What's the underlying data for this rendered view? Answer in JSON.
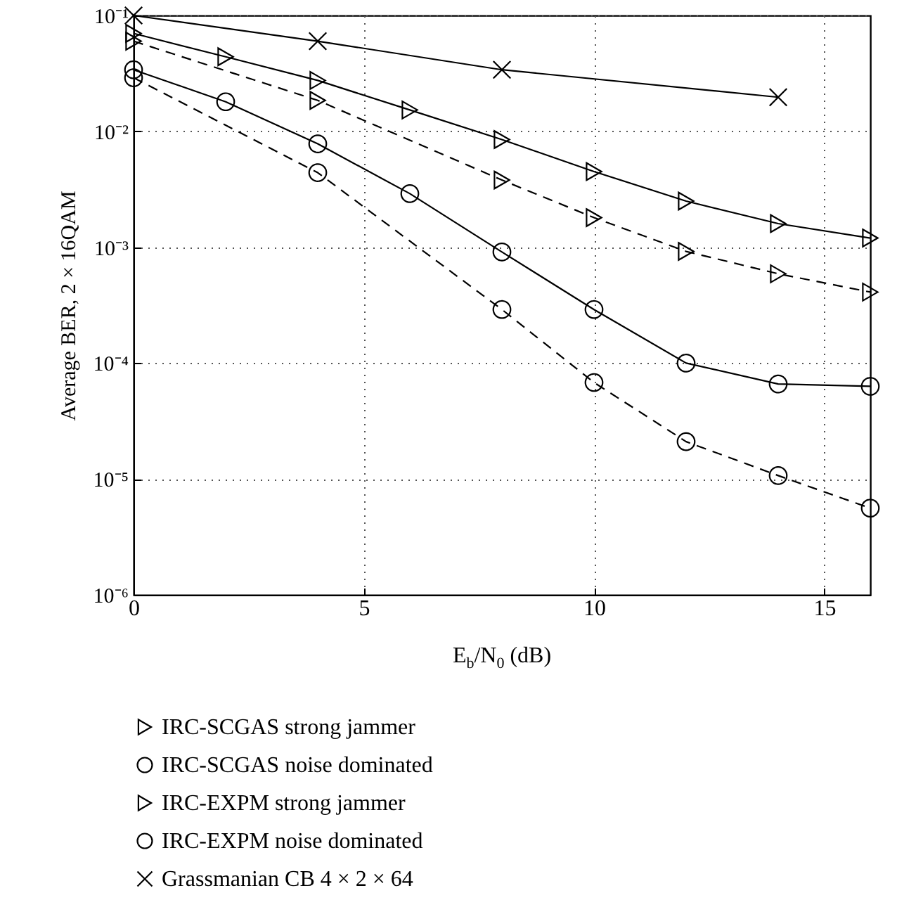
{
  "chart_data": {
    "type": "line",
    "xlabel": "E$_{b}$/N$_{0}$ (dB)",
    "ylabel": "Average BER, 2 × 16QAM",
    "log": "y",
    "xlim": [
      0,
      16
    ],
    "xticks": [
      0,
      5,
      10,
      15
    ],
    "ylim": [
      1e-06,
      0.1
    ],
    "yticks": [
      {
        "value": 1e-06,
        "label": "10⁻⁶"
      },
      {
        "value": 1e-05,
        "label": "10⁻⁵"
      },
      {
        "value": 0.0001,
        "label": "10⁻⁴"
      },
      {
        "value": 0.001,
        "label": "10⁻³"
      },
      {
        "value": 0.01,
        "label": "10⁻²"
      },
      {
        "value": 0.1,
        "label": "10⁻¹"
      }
    ],
    "grid": true,
    "legend": "bottom",
    "x": [
      0,
      2,
      4,
      6,
      8,
      10,
      12,
      14,
      16
    ],
    "series": [
      {
        "name": "IRC-SCGAS strong jammer",
        "color": "#000000",
        "marker": "triangle",
        "line_style": "solid",
        "values": [
          0.07,
          0.044,
          0.0275,
          0.0153,
          0.0085,
          0.0045,
          0.0025,
          0.0016,
          0.0012
        ]
      },
      {
        "name": "IRC-SCGAS noise dominated",
        "color": "#000000",
        "marker": "circle",
        "line_style": "solid",
        "values": [
          0.034,
          0.018,
          0.0078,
          0.0029,
          0.00091,
          0.00029,
          0.0001,
          6.6e-05,
          6.3e-05
        ]
      },
      {
        "name": "IRC-EXPM strong jammer",
        "color": "#000000",
        "marker": "triangle",
        "line_style": "dashed",
        "x": [
          0,
          4,
          8,
          10,
          12,
          14,
          16
        ],
        "values": [
          0.06,
          0.0185,
          0.0038,
          0.0018,
          0.00092,
          0.00059,
          0.00041
        ]
      },
      {
        "name": "IRC-EXPM noise dominated",
        "color": "#000000",
        "marker": "circle",
        "line_style": "dashed",
        "x": [
          0,
          4,
          8,
          10,
          12,
          14,
          16
        ],
        "values": [
          0.029,
          0.0044,
          0.00029,
          6.8e-05,
          2.1e-05,
          1.07e-05,
          5.6e-06
        ]
      },
      {
        "name": "Grassmanian CB 4 × 2 × 64",
        "color": "#000000",
        "marker": "cross",
        "line_style": "solid",
        "x": [
          0,
          4,
          8,
          14
        ],
        "values": [
          0.1,
          0.06,
          0.034,
          0.0197
        ]
      }
    ]
  }
}
